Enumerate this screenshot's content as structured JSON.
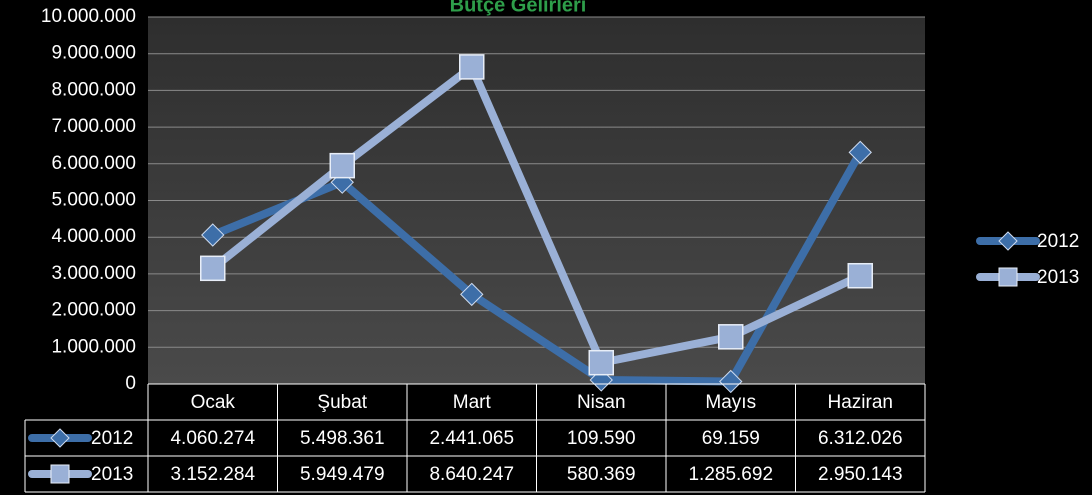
{
  "chart_data": {
    "type": "line",
    "title": "Bütçe Gelirleri",
    "categories": [
      "Ocak",
      "Şubat",
      "Mart",
      "Nisan",
      "Mayıs",
      "Haziran"
    ],
    "series": [
      {
        "name": "2012",
        "color": "#3d6ea8",
        "marker": "diamond",
        "values": [
          4060274,
          5498361,
          2441065,
          109590,
          69159,
          6312026
        ],
        "value_labels": [
          "4.060.274",
          "5.498.361",
          "2.441.065",
          "109.590",
          "69.159",
          "6.312.026"
        ]
      },
      {
        "name": "2013",
        "color": "#9ab0d6",
        "marker": "square",
        "values": [
          3152284,
          5949479,
          8640247,
          580369,
          1285692,
          2950143
        ],
        "value_labels": [
          "3.152.284",
          "5.949.479",
          "8.640.247",
          "580.369",
          "1.285.692",
          "2.950.143"
        ]
      }
    ],
    "ylim": [
      0,
      10000000
    ],
    "yticks": [
      0,
      {
        "value": 1000000,
        "label": "1.000.000"
      },
      {
        "value": 2000000,
        "label": "2.000.000"
      },
      {
        "value": 3000000,
        "label": "3.000.000"
      },
      {
        "value": 4000000,
        "label": "4.000.000"
      },
      {
        "value": 5000000,
        "label": "5.000.000"
      },
      {
        "value": 6000000,
        "label": "6.000.000"
      },
      {
        "value": 7000000,
        "label": "7.000.000"
      },
      {
        "value": 8000000,
        "label": "8.000.000"
      },
      {
        "value": 9000000,
        "label": "9.000.000"
      },
      {
        "value": 10000000,
        "label": "10.000.000"
      }
    ],
    "grid": true
  }
}
